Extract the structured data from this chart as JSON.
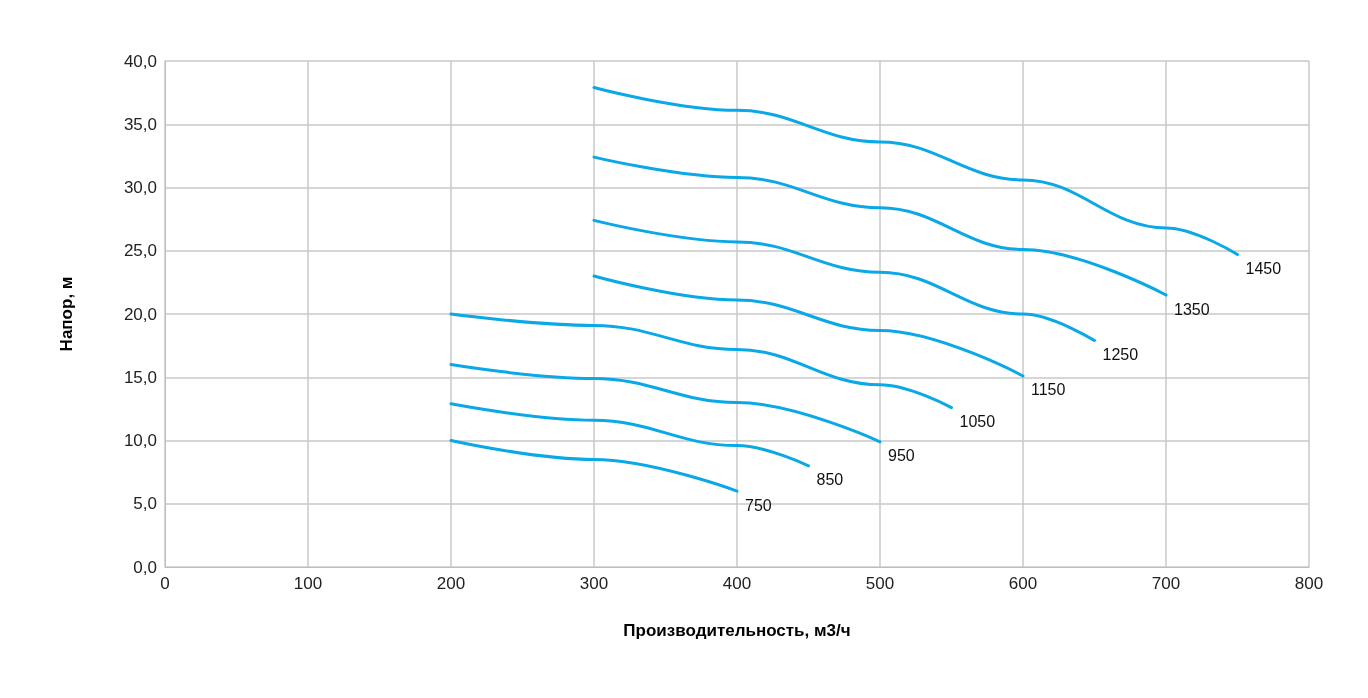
{
  "chart_data": {
    "type": "line",
    "xlabel": "Производительность, м3/ч",
    "ylabel": "Напор, м",
    "xlim": [
      0,
      800
    ],
    "xticks": [
      0,
      100,
      200,
      300,
      400,
      500,
      600,
      700,
      800
    ],
    "ylim": [
      0,
      40
    ],
    "yticks": [
      {
        "value": 0,
        "label": "0,0"
      },
      {
        "value": 5,
        "label": "5,0"
      },
      {
        "value": 10,
        "label": "10,0"
      },
      {
        "value": 15,
        "label": "15,0"
      },
      {
        "value": 20,
        "label": "20,0"
      },
      {
        "value": 25,
        "label": "25,0"
      },
      {
        "value": 30,
        "label": "30,0"
      },
      {
        "value": 35,
        "label": "35,0"
      },
      {
        "value": 40,
        "label": "40,0"
      }
    ],
    "grid": true,
    "legend": false,
    "marker": "none",
    "line_style": "solid",
    "series": [
      {
        "name": "1450",
        "color": "#0aa8e6",
        "x": [
          300,
          400,
          500,
          600,
          700,
          750
        ],
        "values": [
          37.9,
          36.1,
          33.6,
          30.6,
          26.8,
          24.7
        ]
      },
      {
        "name": "1350",
        "color": "#0aa8e6",
        "x": [
          300,
          400,
          500,
          600,
          700
        ],
        "values": [
          32.4,
          30.8,
          28.4,
          25.1,
          21.5
        ]
      },
      {
        "name": "1250",
        "color": "#0aa8e6",
        "x": [
          300,
          400,
          500,
          600,
          650
        ],
        "values": [
          27.4,
          25.7,
          23.3,
          20.0,
          17.9
        ]
      },
      {
        "name": "1150",
        "color": "#0aa8e6",
        "x": [
          300,
          400,
          500,
          600
        ],
        "values": [
          23.0,
          21.1,
          18.7,
          15.1
        ]
      },
      {
        "name": "1050",
        "color": "#0aa8e6",
        "x": [
          200,
          300,
          400,
          500,
          550
        ],
        "values": [
          20.0,
          19.1,
          17.2,
          14.4,
          12.6
        ]
      },
      {
        "name": "950",
        "color": "#0aa8e6",
        "x": [
          200,
          300,
          400,
          500
        ],
        "values": [
          16.0,
          14.9,
          13.0,
          9.9
        ]
      },
      {
        "name": "850",
        "color": "#0aa8e6",
        "x": [
          200,
          300,
          400,
          450
        ],
        "values": [
          12.9,
          11.6,
          9.6,
          8.0
        ]
      },
      {
        "name": "750",
        "color": "#0aa8e6",
        "x": [
          200,
          300,
          400
        ],
        "values": [
          10.0,
          8.5,
          6.0
        ]
      }
    ]
  }
}
